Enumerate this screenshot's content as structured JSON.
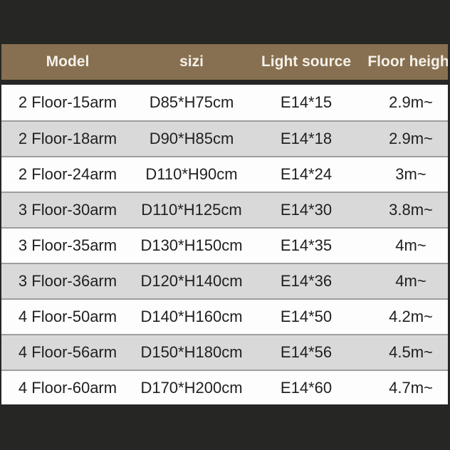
{
  "page": {
    "background_color": "#262625"
  },
  "table": {
    "header": {
      "model_label": "Model",
      "size_label": "sizi",
      "light_source_label": "Light source",
      "floor_height_label": "Floor height",
      "background_color": "#877051",
      "text_color": "#f5f1ea"
    },
    "row_colors": {
      "odd": "#fdfdfd",
      "even": "#d9d9d9"
    },
    "rows": [
      {
        "model": "2 Floor-15arm",
        "size": "D85*H75cm",
        "light_source": "E14*15",
        "floor_height": "2.9m~"
      },
      {
        "model": "2 Floor-18arm",
        "size": "D90*H85cm",
        "light_source": "E14*18",
        "floor_height": "2.9m~"
      },
      {
        "model": "2 Floor-24arm",
        "size": "D110*H90cm",
        "light_source": "E14*24",
        "floor_height": "3m~"
      },
      {
        "model": "3 Floor-30arm",
        "size": "D110*H125cm",
        "light_source": "E14*30",
        "floor_height": "3.8m~"
      },
      {
        "model": "3 Floor-35arm",
        "size": "D130*H150cm",
        "light_source": "E14*35",
        "floor_height": "4m~"
      },
      {
        "model": "3 Floor-36arm",
        "size": "D120*H140cm",
        "light_source": "E14*36",
        "floor_height": "4m~"
      },
      {
        "model": "4 Floor-50arm",
        "size": "D140*H160cm",
        "light_source": "E14*50",
        "floor_height": "4.2m~"
      },
      {
        "model": "4 Floor-56arm",
        "size": "D150*H180cm",
        "light_source": "E14*56",
        "floor_height": "4.5m~"
      },
      {
        "model": "4 Floor-60arm",
        "size": "D170*H200cm",
        "light_source": "E14*60",
        "floor_height": "4.7m~"
      }
    ]
  }
}
